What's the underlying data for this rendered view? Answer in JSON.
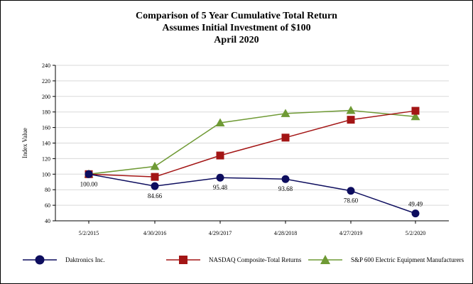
{
  "chart_data": {
    "type": "line",
    "title": [
      "Comparison of 5 Year Cumulative Total Return",
      "Assumes Initial Investment of $100",
      "April 2020"
    ],
    "ylabel": "Index Value",
    "xlabel": "",
    "ylim": [
      40,
      240
    ],
    "yticks": [
      40,
      60,
      80,
      100,
      120,
      140,
      160,
      180,
      200,
      220,
      240
    ],
    "grid": true,
    "legend_position": "bottom",
    "categories": [
      "5/2/2015",
      "4/30/2016",
      "4/29/2017",
      "4/28/2018",
      "4/27/2019",
      "5/2/2020"
    ],
    "series": [
      {
        "name": "Daktronics Inc.",
        "marker": "circle",
        "color": "#0d0d5e",
        "values": [
          100.0,
          84.66,
          95.48,
          93.68,
          78.6,
          49.49
        ],
        "labels": [
          "100.00",
          "84.66",
          "95.48",
          "93.68",
          "78.60",
          "49.49"
        ]
      },
      {
        "name": "NASDAQ Composite-Total Returns",
        "marker": "square",
        "color": "#a31515",
        "values": [
          100,
          96.5,
          124,
          147,
          170,
          181.5
        ]
      },
      {
        "name": "S&P 600 Electric Equipment Manufacturers",
        "marker": "triangle",
        "color": "#6f9a35",
        "values": [
          100,
          110,
          166,
          178,
          182,
          174
        ]
      }
    ]
  }
}
